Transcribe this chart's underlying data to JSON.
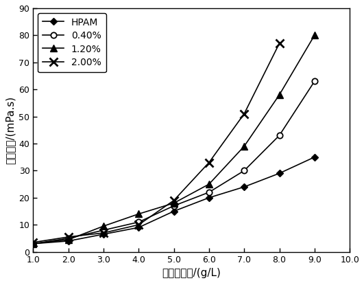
{
  "x_all": [
    1.0,
    2.0,
    3.0,
    4.0,
    5.0,
    6.0,
    7.0,
    8.0,
    9.0
  ],
  "x_p200": [
    1.0,
    2.0,
    3.0,
    4.0,
    5.0,
    6.0,
    7.0,
    8.0
  ],
  "HPAM": [
    3.0,
    4.0,
    6.5,
    9.0,
    15.0,
    20.0,
    24.0,
    29.0,
    35.0
  ],
  "p040": [
    3.0,
    5.0,
    8.0,
    11.0,
    17.0,
    22.0,
    30.0,
    43.0,
    63.0
  ],
  "p120": [
    3.0,
    4.5,
    9.5,
    14.0,
    18.0,
    25.0,
    39.0,
    58.0,
    80.0
  ],
  "p200": [
    3.5,
    5.5,
    7.0,
    10.0,
    19.0,
    33.0,
    51.0,
    77.0
  ],
  "xlim": [
    1.0,
    10.0
  ],
  "ylim": [
    0,
    90
  ],
  "xlabel": "聚合物浓度/(g/L)",
  "ylabel": "表观粘度/(mPa.s)",
  "xticks": [
    1.0,
    2.0,
    3.0,
    4.0,
    5.0,
    6.0,
    7.0,
    8.0,
    9.0,
    10.0
  ],
  "yticks": [
    0,
    10,
    20,
    30,
    40,
    50,
    60,
    70,
    80,
    90
  ],
  "legend_labels": [
    "HPAM",
    "0.40%",
    "1.20%",
    "2.00%"
  ],
  "color": "#000000",
  "axis_fontsize": 11,
  "tick_fontsize": 9,
  "legend_fontsize": 10
}
